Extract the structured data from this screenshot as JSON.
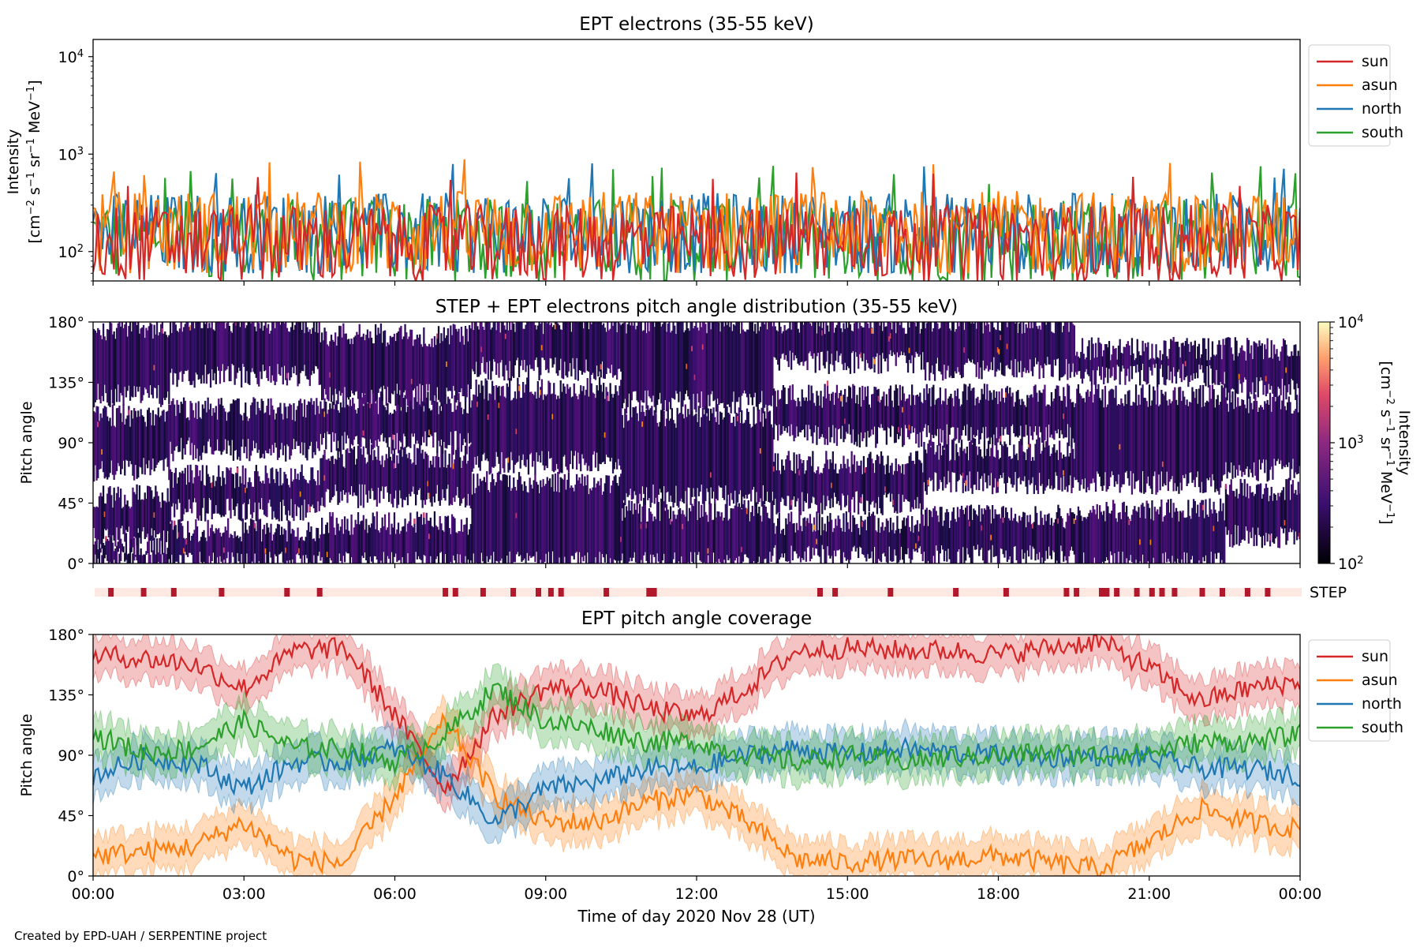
{
  "credit": "Created by EPD-UAH / SERPENTINE project",
  "xlabel": "Time of day 2020 Nov 28 (UT)",
  "xticks": [
    "00:00",
    "03:00",
    "06:00",
    "09:00",
    "12:00",
    "15:00",
    "18:00",
    "21:00",
    "00:00"
  ],
  "colors": {
    "sun": "#d62728",
    "asun": "#ff7f0e",
    "north": "#1f77b4",
    "south": "#2ca02c"
  },
  "chart_data": [
    {
      "type": "line",
      "title": "EPT electrons (35-55 keV)",
      "ylabel_1": "Intensity",
      "ylabel_2": "[cm$^{-2}$ s$^{-1}$ sr$^{-1}$ MeV$^{-1}$]",
      "yscale": "log",
      "ylim": [
        50,
        15000
      ],
      "yticks": [
        "10^2",
        "10^3",
        "10^4"
      ],
      "x_range_hours": [
        0,
        24
      ],
      "legend": "outside-right",
      "series": [
        {
          "name": "sun",
          "typical_range": [
            50,
            300
          ]
        },
        {
          "name": "asun",
          "typical_range": [
            60,
            420
          ]
        },
        {
          "name": "north",
          "typical_range": [
            60,
            400
          ]
        },
        {
          "name": "south",
          "typical_range": [
            50,
            350
          ]
        }
      ]
    },
    {
      "type": "heatmap",
      "title": "STEP + EPT electrons pitch angle distribution (35-55 keV)",
      "ylabel": "Pitch angle",
      "ylim": [
        0,
        180
      ],
      "yticks": [
        "0°",
        "45°",
        "90°",
        "135°",
        "180°"
      ],
      "colorbar_label": "Intensity",
      "colorbar_units": "[cm$^{-2}$ s$^{-1}$ sr$^{-1}$ MeV$^{-1}$]",
      "colorbar_ticks": [
        "10^2",
        "10^3",
        "10^4"
      ],
      "colorbar_range": [
        100,
        10000
      ],
      "coverage_bands_deg": [
        {
          "hour": 0,
          "bands": [
            [
              0,
              15
            ],
            [
              20,
              50
            ],
            [
              70,
              110
            ],
            [
              125,
              175
            ]
          ]
        },
        {
          "hour": 3,
          "bands": [
            [
              0,
              25
            ],
            [
              40,
              65
            ],
            [
              85,
              115
            ],
            [
              140,
              180
            ]
          ]
        },
        {
          "hour": 6,
          "bands": [
            [
              0,
              30
            ],
            [
              50,
              80
            ],
            [
              90,
              120
            ],
            [
              125,
              170
            ]
          ]
        },
        {
          "hour": 9,
          "bands": [
            [
              0,
              60
            ],
            [
              75,
              130
            ],
            [
              145,
              180
            ]
          ]
        },
        {
          "hour": 12,
          "bands": [
            [
              0,
              40
            ],
            [
              50,
              110
            ],
            [
              120,
              180
            ]
          ]
        },
        {
          "hour": 15,
          "bands": [
            [
              5,
              30
            ],
            [
              45,
              75
            ],
            [
              95,
              125
            ],
            [
              150,
              180
            ]
          ]
        },
        {
          "hour": 18,
          "bands": [
            [
              5,
              35
            ],
            [
              60,
              85
            ],
            [
              95,
              125
            ],
            [
              145,
              180
            ]
          ]
        },
        {
          "hour": 21,
          "bands": [
            [
              0,
              40
            ],
            [
              60,
              125
            ],
            [
              140,
              160
            ]
          ]
        },
        {
          "hour": 24,
          "bands": [
            [
              20,
              55
            ],
            [
              70,
              120
            ],
            [
              130,
              160
            ]
          ]
        }
      ]
    },
    {
      "type": "table",
      "label": "STEP",
      "marker_hours": [
        0.3,
        0.95,
        1.55,
        2.5,
        3.8,
        4.45,
        6.95,
        7.15,
        7.7,
        8.3,
        8.8,
        9.05,
        9.25,
        10.15,
        11.0,
        11.1,
        14.4,
        14.7,
        15.8,
        17.1,
        18.1,
        19.3,
        19.5,
        20.0,
        20.1,
        20.3,
        20.7,
        21.0,
        21.2,
        21.45,
        22.0,
        22.4,
        22.9,
        23.3
      ]
    },
    {
      "type": "line",
      "title": "EPT pitch angle coverage",
      "ylabel": "Pitch angle",
      "ylim": [
        0,
        180
      ],
      "yticks": [
        "0°",
        "45°",
        "90°",
        "135°",
        "180°"
      ],
      "x_range_hours": [
        0,
        24
      ],
      "legend": "outside-right",
      "band_halfwidth_deg": 15,
      "x": [
        0,
        1,
        2,
        3,
        4,
        5,
        6,
        7,
        8,
        9,
        10,
        11,
        12,
        13,
        14,
        15,
        16,
        17,
        18,
        19,
        20,
        21,
        22,
        23,
        24
      ],
      "series": [
        {
          "name": "sun",
          "values": [
            165,
            162,
            158,
            140,
            168,
            170,
            120,
            65,
            120,
            140,
            140,
            125,
            118,
            140,
            168,
            170,
            168,
            168,
            165,
            170,
            175,
            155,
            130,
            140,
            145
          ]
        },
        {
          "name": "asun",
          "values": [
            15,
            18,
            22,
            40,
            12,
            10,
            60,
            115,
            60,
            40,
            40,
            55,
            62,
            40,
            12,
            10,
            12,
            12,
            15,
            10,
            5,
            25,
            50,
            40,
            35
          ]
        },
        {
          "name": "north",
          "values": [
            75,
            88,
            85,
            65,
            85,
            85,
            95,
            75,
            40,
            65,
            70,
            80,
            80,
            90,
            95,
            90,
            95,
            92,
            90,
            88,
            90,
            88,
            80,
            80,
            75
          ]
        },
        {
          "name": "south",
          "values": [
            105,
            92,
            95,
            115,
            95,
            95,
            85,
            105,
            140,
            115,
            110,
            100,
            100,
            90,
            85,
            90,
            85,
            88,
            90,
            92,
            90,
            92,
            100,
            100,
            105
          ]
        }
      ]
    }
  ]
}
